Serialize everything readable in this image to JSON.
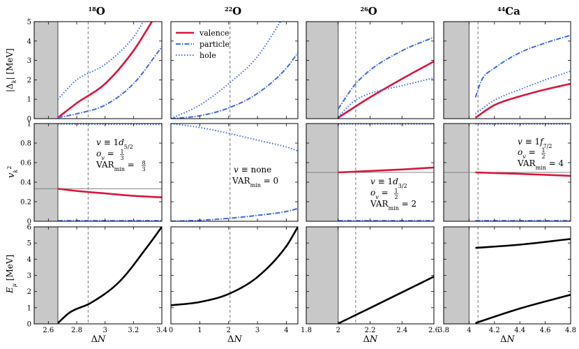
{
  "colors": {
    "valence": "#dc143c",
    "particle": "#4169e1",
    "hole": "#4169e1",
    "energy": "#000000",
    "shade": "#c8c8c8",
    "reference": "#808080"
  },
  "legend": {
    "placement": "top-left of second column, top row",
    "entries": [
      {
        "key": "valence",
        "label": "valence",
        "style": "solid"
      },
      {
        "key": "particle",
        "label": "particle",
        "style": "dashdot"
      },
      {
        "key": "hole",
        "label": "hole",
        "style": "dotted"
      }
    ]
  },
  "row_labels": {
    "row0": "|Δ_k| [MeV]",
    "row1": "v_k^2",
    "row2": "E_μ [MeV]"
  },
  "chart_data": [
    {
      "type": "line",
      "title": "18O",
      "title_mass": "18",
      "title_element": "O",
      "xlabel": "ΔN",
      "xlim": [
        2.5,
        3.4
      ],
      "xticks": [
        "2.6",
        "2.8",
        "3",
        "3.2",
        "3.4"
      ],
      "xtick_values": [
        2.6,
        2.8,
        3.0,
        3.2,
        3.4
      ],
      "shaded_below": 2.667,
      "dashed_vline": 2.88,
      "annotation": {
        "orbital": "v ≡ 1d5/2",
        "ov": "o_v = 1/3",
        "varmin": "VAR_min = 8/3"
      },
      "rows": [
        {
          "ylim": [
            0,
            5
          ],
          "yticks": [
            0,
            1,
            2,
            3,
            4,
            5
          ],
          "series": [
            {
              "name": "valence",
              "x": [
                2.667,
                2.8,
                3.0,
                3.2,
                3.33
              ],
              "y": [
                0.05,
                0.8,
                1.8,
                3.5,
                5.0
              ]
            },
            {
              "name": "particle",
              "x": [
                2.667,
                2.8,
                3.0,
                3.2,
                3.4
              ],
              "y": [
                0.05,
                0.25,
                0.7,
                1.8,
                3.7
              ]
            },
            {
              "name": "hole",
              "x": [
                2.667,
                2.8,
                3.0,
                3.2,
                3.27
              ],
              "y": [
                1.0,
                2.0,
                2.8,
                4.2,
                5.0
              ]
            }
          ]
        },
        {
          "ylim": [
            0,
            1
          ],
          "yticks": [
            0,
            0.2,
            0.4,
            0.6,
            0.8,
            1
          ],
          "ref_line": 0.333,
          "series": [
            {
              "name": "valence",
              "x": [
                2.667,
                2.8,
                3.0,
                3.2,
                3.4
              ],
              "y": [
                0.333,
                0.31,
                0.285,
                0.26,
                0.245
              ]
            },
            {
              "name": "particle",
              "x": [
                2.667,
                3.4
              ],
              "y": [
                0.005,
                0.005
              ]
            },
            {
              "name": "hole",
              "x": [
                2.667,
                3.4
              ],
              "y": [
                0.995,
                0.99
              ]
            }
          ]
        },
        {
          "ylim": [
            0,
            6
          ],
          "yticks": [
            0,
            1,
            2,
            3,
            4,
            5,
            6
          ],
          "series": [
            {
              "name": "E",
              "x": [
                2.667,
                2.75,
                2.9,
                3.1,
                3.3,
                3.4
              ],
              "y": [
                0.05,
                0.7,
                1.3,
                2.6,
                4.8,
                6.0
              ]
            }
          ]
        }
      ]
    },
    {
      "type": "line",
      "title": "22O",
      "title_mass": "22",
      "title_element": "O",
      "xlabel": "ΔN",
      "xlim": [
        0,
        4.4
      ],
      "xticks": [
        "0",
        "1",
        "2",
        "3",
        "4"
      ],
      "xtick_values": [
        0,
        1,
        2,
        3,
        4
      ],
      "shaded_below": null,
      "dashed_vline": 2.05,
      "annotation": {
        "orbital": "v ≡ none",
        "varmin": "VAR_min = 0"
      },
      "rows": [
        {
          "ylim": [
            0,
            5
          ],
          "yticks": [
            0,
            1,
            2,
            3,
            4,
            5
          ],
          "series": [
            {
              "name": "particle",
              "x": [
                0,
                1,
                2,
                3,
                4,
                4.4
              ],
              "y": [
                0.0,
                0.15,
                0.55,
                1.3,
                2.6,
                3.4
              ]
            },
            {
              "name": "hole",
              "x": [
                0,
                1,
                2,
                3,
                3.8
              ],
              "y": [
                0.0,
                0.7,
                1.8,
                3.2,
                5.0
              ]
            }
          ]
        },
        {
          "ylim": [
            0,
            1
          ],
          "yticks": [
            0,
            0.2,
            0.4,
            0.6,
            0.8,
            1
          ],
          "series": [
            {
              "name": "particle",
              "x": [
                0,
                1,
                2,
                3,
                4,
                4.4
              ],
              "y": [
                0.0,
                0.01,
                0.03,
                0.06,
                0.1,
                0.13
              ]
            },
            {
              "name": "hole",
              "x": [
                0,
                1,
                2,
                3,
                4,
                4.4
              ],
              "y": [
                1.0,
                0.96,
                0.9,
                0.83,
                0.76,
                0.72
              ]
            }
          ]
        },
        {
          "ylim": [
            0,
            6
          ],
          "yticks": [
            0,
            1,
            2,
            3,
            4,
            5,
            6
          ],
          "series": [
            {
              "name": "E",
              "x": [
                0,
                1,
                2,
                3,
                4,
                4.4
              ],
              "y": [
                1.15,
                1.35,
                1.85,
                2.9,
                4.8,
                6.0
              ]
            }
          ]
        }
      ]
    },
    {
      "type": "line",
      "title": "26O",
      "title_mass": "26",
      "title_element": "O",
      "xlabel": "ΔN",
      "xlim": [
        1.8,
        2.6
      ],
      "xticks": [
        "1.8",
        "2",
        "2.2",
        "2.4",
        "2.6"
      ],
      "xtick_values": [
        1.8,
        2.0,
        2.2,
        2.4,
        2.6
      ],
      "shaded_below": 2.0,
      "dashed_vline": 2.11,
      "annotation": {
        "orbital": "v ≡ 1d3/2",
        "ov": "o_v = 1/2",
        "varmin": "VAR_min = 2"
      },
      "rows": [
        {
          "ylim": [
            0,
            5
          ],
          "yticks": [
            0,
            1,
            2,
            3,
            4,
            5
          ],
          "series": [
            {
              "name": "valence",
              "x": [
                2.0,
                2.2,
                2.4,
                2.6
              ],
              "y": [
                0.05,
                1.1,
                2.05,
                2.95
              ]
            },
            {
              "name": "particle",
              "x": [
                2.0,
                2.1,
                2.2,
                2.4,
                2.6
              ],
              "y": [
                0.5,
                1.7,
                2.5,
                3.5,
                4.2
              ]
            },
            {
              "name": "hole",
              "x": [
                2.0,
                2.1,
                2.2,
                2.4,
                2.6
              ],
              "y": [
                0.1,
                0.9,
                1.3,
                1.7,
                2.1
              ]
            }
          ]
        },
        {
          "ylim": [
            0,
            1
          ],
          "yticks": [
            0,
            0.2,
            0.4,
            0.6,
            0.8,
            1
          ],
          "ref_line": 0.5,
          "series": [
            {
              "name": "valence",
              "x": [
                2.0,
                2.2,
                2.4,
                2.6
              ],
              "y": [
                0.5,
                0.515,
                0.53,
                0.55
              ]
            },
            {
              "name": "particle",
              "x": [
                2.0,
                2.6
              ],
              "y": [
                0.005,
                0.005
              ]
            },
            {
              "name": "hole",
              "x": [
                2.0,
                2.6
              ],
              "y": [
                0.995,
                0.995
              ]
            }
          ]
        },
        {
          "ylim": [
            0,
            6
          ],
          "yticks": [
            0,
            1,
            2,
            3,
            4,
            5,
            6
          ],
          "series": [
            {
              "name": "E",
              "x": [
                2.0,
                2.2,
                2.4,
                2.6
              ],
              "y": [
                0.02,
                0.98,
                1.95,
                2.92
              ]
            }
          ]
        }
      ]
    },
    {
      "type": "line",
      "title": "44Ca",
      "title_mass": "44",
      "title_element": "Ca",
      "xlabel": "ΔN",
      "xlim": [
        3.8,
        4.8
      ],
      "xticks": [
        "3.8",
        "4",
        "4.2",
        "4.4",
        "4.6",
        "4.8"
      ],
      "xtick_values": [
        3.8,
        4.0,
        4.2,
        4.4,
        4.6,
        4.8
      ],
      "shaded_below": 4.0,
      "dashed_vline": 4.07,
      "annotation": {
        "orbital": "v ≡ 1f7/2",
        "ov": "o_v = 1/2",
        "varmin": "VAR_min = 4"
      },
      "rows": [
        {
          "ylim": [
            0,
            5
          ],
          "yticks": [
            0,
            1,
            2,
            3,
            4,
            5
          ],
          "series": [
            {
              "name": "valence",
              "x": [
                4.05,
                4.2,
                4.4,
                4.6,
                4.8
              ],
              "y": [
                0.05,
                0.7,
                1.15,
                1.5,
                1.8
              ]
            },
            {
              "name": "particle",
              "x": [
                4.05,
                4.1,
                4.2,
                4.4,
                4.6,
                4.8
              ],
              "y": [
                1.1,
                2.0,
                2.6,
                3.4,
                3.9,
                4.3
              ]
            },
            {
              "name": "hole",
              "x": [
                4.05,
                4.2,
                4.4,
                4.6,
                4.8
              ],
              "y": [
                0.25,
                0.95,
                1.5,
                2.0,
                2.45
              ]
            }
          ]
        },
        {
          "ylim": [
            0,
            1
          ],
          "yticks": [
            0,
            0.2,
            0.4,
            0.6,
            0.8,
            1
          ],
          "ref_line": 0.5,
          "series": [
            {
              "name": "valence",
              "x": [
                4.05,
                4.4,
                4.8
              ],
              "y": [
                0.5,
                0.485,
                0.465
              ]
            },
            {
              "name": "particle",
              "x": [
                4.05,
                4.8
              ],
              "y": [
                0.005,
                0.005
              ]
            },
            {
              "name": "hole",
              "x": [
                4.05,
                4.8
              ],
              "y": [
                0.995,
                0.995
              ]
            }
          ]
        },
        {
          "ylim": [
            0,
            6
          ],
          "yticks": [
            0,
            1,
            2,
            3,
            4,
            5,
            6
          ],
          "series": [
            {
              "name": "E",
              "x": [
                4.05,
                4.4,
                4.8
              ],
              "y": [
                4.7,
                4.9,
                5.25
              ]
            },
            {
              "name": "E",
              "x": [
                4.05,
                4.4,
                4.8
              ],
              "y": [
                0.05,
                0.95,
                1.8
              ]
            }
          ]
        }
      ]
    }
  ]
}
